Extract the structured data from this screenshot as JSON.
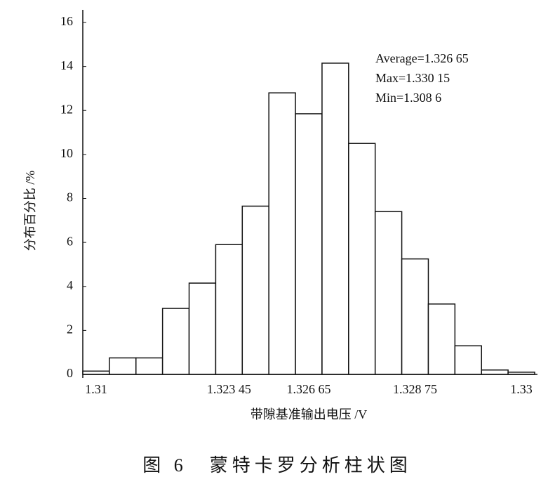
{
  "chart_data": {
    "type": "bar",
    "categories": [
      "1.31",
      null,
      null,
      null,
      null,
      "1.323 45",
      null,
      null,
      "1.326 65",
      null,
      null,
      null,
      "1.328 75",
      null,
      null,
      null,
      "1.33"
    ],
    "values": [
      0.15,
      0.75,
      0.75,
      3.0,
      4.15,
      5.9,
      7.65,
      12.8,
      11.85,
      14.15,
      10.5,
      7.4,
      5.25,
      3.2,
      1.3,
      0.2,
      0.1
    ],
    "color": "#ffffff",
    "ylim": [
      0,
      16
    ],
    "yticks": [
      0,
      2,
      4,
      6,
      8,
      10,
      12,
      14,
      16
    ],
    "ylabel": "分布百分比 /%",
    "xlabel": "带隙基准输出电压 /V",
    "annotations": [
      "Average=1.326 65",
      "Max=1.330 15",
      "Min=1.308 6"
    ],
    "caption": "图 6　蒙特卡罗分析柱状图"
  }
}
